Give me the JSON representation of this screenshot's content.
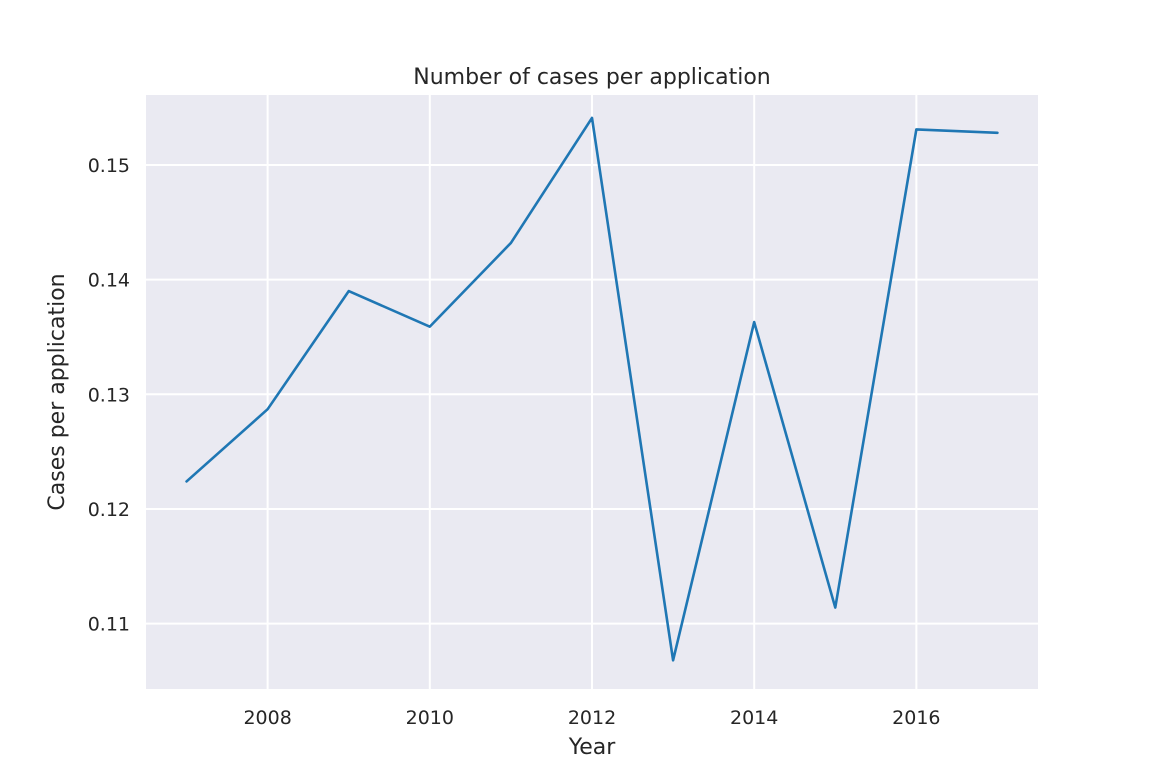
{
  "chart_data": {
    "type": "line",
    "title": "Number of cases per application",
    "xlabel": "Year",
    "ylabel": "Cases per application",
    "xlim": [
      2006.5,
      2017.5
    ],
    "ylim": [
      0.1043,
      0.1561
    ],
    "xticks": [
      2008,
      2010,
      2012,
      2014,
      2016
    ],
    "xtick_labels": [
      "2008",
      "2010",
      "2012",
      "2014",
      "2016"
    ],
    "yticks": [
      0.11,
      0.12,
      0.13,
      0.14,
      0.15
    ],
    "ytick_labels": [
      "0.11",
      "0.12",
      "0.13",
      "0.14",
      "0.15"
    ],
    "grid": true,
    "series": [
      {
        "color": "#1f77b4",
        "x": [
          2007,
          2008,
          2009,
          2010,
          2011,
          2012,
          2013,
          2014,
          2015,
          2016,
          2017
        ],
        "values": [
          0.1224,
          0.1287,
          0.139,
          0.1359,
          0.1432,
          0.1541,
          0.1068,
          0.1363,
          0.1114,
          0.1531,
          0.1528
        ]
      }
    ],
    "colors": {
      "background": "#eaeaf2",
      "grid": "#ffffff",
      "text": "#262626"
    }
  }
}
